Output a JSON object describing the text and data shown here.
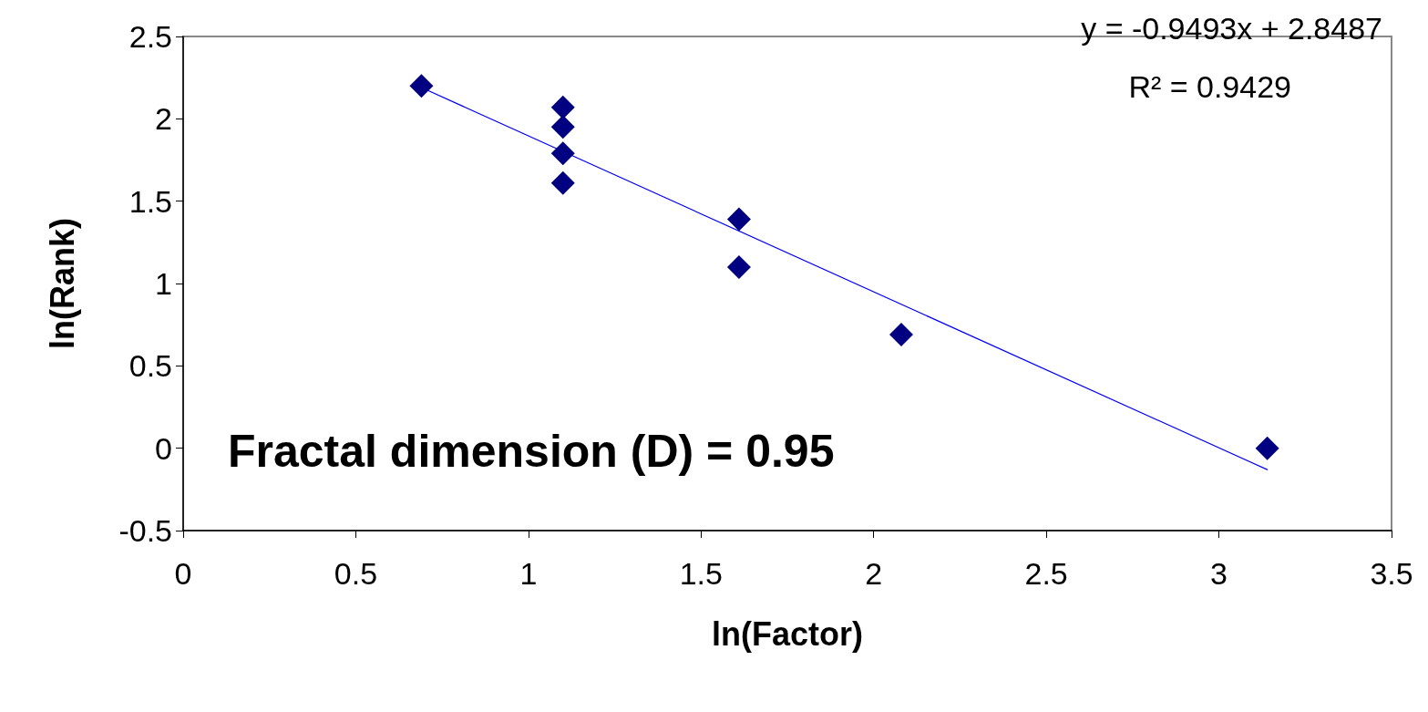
{
  "chart_data": {
    "type": "scatter",
    "xlabel": "ln(Factor)",
    "ylabel": "ln(Rank)",
    "xlim": [
      0,
      3.5
    ],
    "xticks": [
      0,
      0.5,
      1,
      1.5,
      2,
      2.5,
      3,
      3.5
    ],
    "ylim": [
      -0.5,
      2.5
    ],
    "yticks": [
      -0.5,
      0,
      0.5,
      1,
      1.5,
      2,
      2.5
    ],
    "grid": false,
    "marker": "diamond",
    "series": [
      {
        "color": "#000080",
        "x": [
          0.69,
          1.1,
          1.1,
          1.1,
          1.1,
          1.61,
          1.61,
          2.08,
          3.14
        ],
        "values": [
          2.2,
          2.07,
          1.95,
          1.79,
          1.61,
          1.39,
          1.1,
          0.69,
          0
        ]
      },
      {
        "type": "line",
        "color": "#0000ff",
        "marker": "none",
        "line_style": "solid",
        "x": [
          0.69,
          3.14
        ],
        "values": [
          2.19,
          -0.13
        ]
      }
    ],
    "annotations": [
      "y = -0.9493x + 2.8487",
      "R² = 0.9429",
      "Fractal dimension (D) = 0.95"
    ]
  }
}
